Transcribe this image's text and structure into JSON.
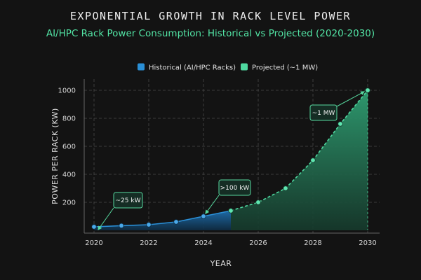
{
  "title": "EXPONENTIAL GROWTH IN RACK LEVEL POWER",
  "subtitle": "AI/HPC Rack Power Consumption: Historical vs Projected (2020-2030)",
  "colors": {
    "background": "#131313",
    "historical": "#2a8fd6",
    "projected": "#4fd9a0",
    "annotation": "#57d99f"
  },
  "chart_data": {
    "type": "area",
    "xlabel": "YEAR",
    "ylabel": "POWER PER RACK (KW)",
    "xlim": [
      2020,
      2030
    ],
    "ylim": [
      0,
      1000
    ],
    "xticks": [
      2020,
      2022,
      2024,
      2026,
      2028,
      2030
    ],
    "yticks": [
      200,
      400,
      600,
      800,
      1000
    ],
    "grid": true,
    "legend_position": "top-center",
    "series": [
      {
        "name": "Historical (AI/HPC Racks)",
        "style": "solid",
        "x": [
          2020,
          2021,
          2022,
          2023,
          2024,
          2025
        ],
        "y": [
          25,
          33,
          40,
          60,
          100,
          140
        ]
      },
      {
        "name": "Projected (~1 MW)",
        "style": "dashed",
        "x": [
          2025,
          2026,
          2027,
          2028,
          2029,
          2030
        ],
        "y": [
          140,
          200,
          300,
          500,
          760,
          1000
        ]
      }
    ],
    "annotations": [
      {
        "text": "~25 kW",
        "x": 2020,
        "y": 25
      },
      {
        "text": ">100 kW",
        "x": 2024,
        "y": 100
      },
      {
        "text": "~1 MW",
        "x": 2030,
        "y": 1000
      }
    ]
  }
}
